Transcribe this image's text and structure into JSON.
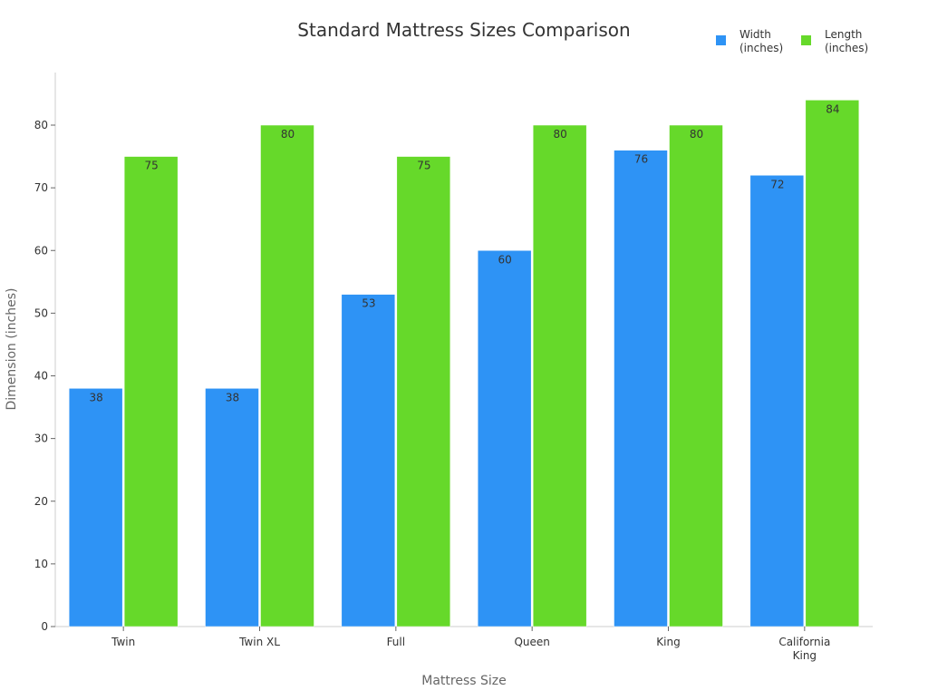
{
  "chart_data": {
    "type": "bar",
    "title": "Standard Mattress Sizes Comparison",
    "xlabel": "Mattress Size",
    "ylabel": "Dimension (inches)",
    "categories": [
      "Twin",
      "Twin XL",
      "Full",
      "Queen",
      "King",
      "California King"
    ],
    "series": [
      {
        "name": "Width (inches)",
        "color": "#2e93f5",
        "values": [
          38,
          38,
          53,
          60,
          76,
          72
        ]
      },
      {
        "name": "Length (inches)",
        "color": "#66d92a",
        "values": [
          75,
          80,
          75,
          80,
          80,
          84
        ]
      }
    ],
    "ylim": [
      0,
      88
    ],
    "yticks": [
      0,
      10,
      20,
      30,
      40,
      50,
      60,
      70,
      80
    ],
    "grid": false,
    "legend": "top-right",
    "data_labels": true
  }
}
